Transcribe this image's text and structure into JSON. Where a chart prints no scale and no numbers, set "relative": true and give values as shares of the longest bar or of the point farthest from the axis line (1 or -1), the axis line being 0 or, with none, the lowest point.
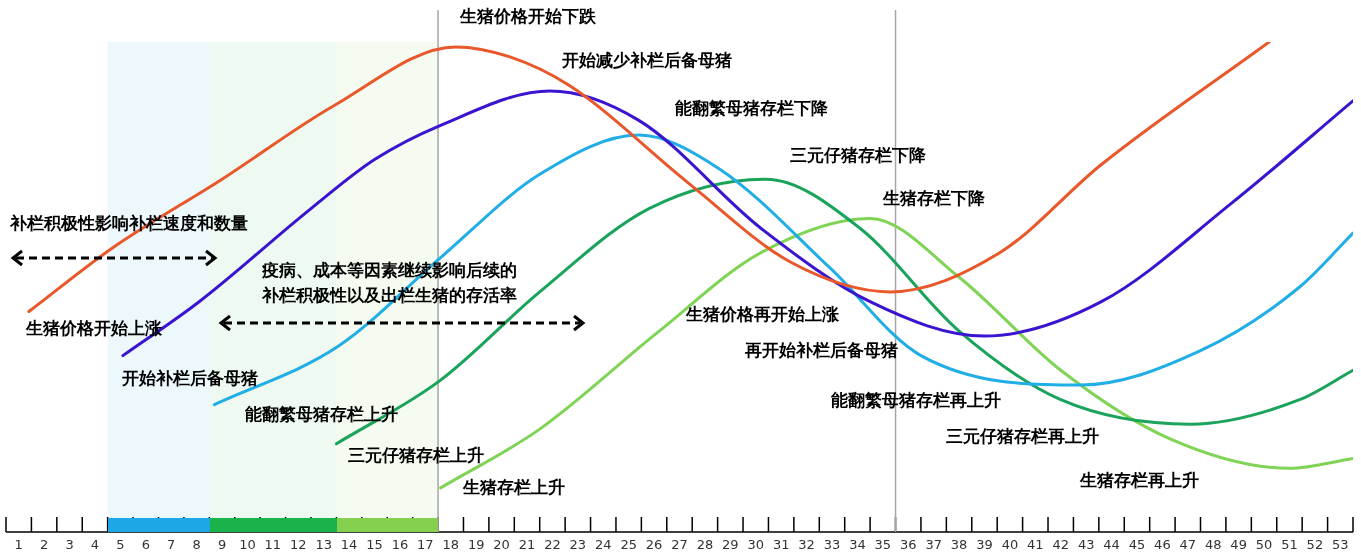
{
  "chart_data": {
    "type": "line",
    "relative": true,
    "legend": false,
    "marker": "none",
    "xlim": [
      0.5,
      53.5
    ],
    "xticks": [
      {
        "value": 0.5,
        "label": null
      },
      1,
      {
        "value": 1.5,
        "label": null
      },
      2,
      {
        "value": 2.5,
        "label": null
      },
      3,
      {
        "value": 3.5,
        "label": null
      },
      4,
      {
        "value": 4.5,
        "label": null
      },
      5,
      {
        "value": 5.5,
        "label": null
      },
      6,
      {
        "value": 6.5,
        "label": null
      },
      7,
      {
        "value": 7.5,
        "label": null
      },
      8,
      {
        "value": 8.5,
        "label": null
      },
      9,
      {
        "value": 9.5,
        "label": null
      },
      10,
      {
        "value": 10.5,
        "label": null
      },
      11,
      {
        "value": 11.5,
        "label": null
      },
      12,
      {
        "value": 12.5,
        "label": null
      },
      13,
      {
        "value": 13.5,
        "label": null
      },
      14,
      {
        "value": 14.5,
        "label": null
      },
      15,
      {
        "value": 15.5,
        "label": null
      },
      16,
      {
        "value": 16.5,
        "label": null
      },
      17,
      {
        "value": 17.5,
        "label": null
      },
      18,
      {
        "value": 18.5,
        "label": null
      },
      19,
      {
        "value": 19.5,
        "label": null
      },
      20,
      {
        "value": 20.5,
        "label": null
      },
      21,
      {
        "value": 21.5,
        "label": null
      },
      22,
      {
        "value": 22.5,
        "label": null
      },
      23,
      {
        "value": 23.5,
        "label": null
      },
      24,
      {
        "value": 24.5,
        "label": null
      },
      25,
      {
        "value": 25.5,
        "label": null
      },
      26,
      {
        "value": 26.5,
        "label": null
      },
      27,
      {
        "value": 27.5,
        "label": null
      },
      28,
      {
        "value": 28.5,
        "label": null
      },
      29,
      {
        "value": 29.5,
        "label": null
      },
      30,
      {
        "value": 30.5,
        "label": null
      },
      31,
      {
        "value": 31.5,
        "label": null
      },
      32,
      {
        "value": 32.5,
        "label": null
      },
      33,
      {
        "value": 33.5,
        "label": null
      },
      34,
      {
        "value": 34.5,
        "label": null
      },
      35,
      {
        "value": 35.5,
        "label": null
      },
      36,
      {
        "value": 36.5,
        "label": null
      },
      37,
      {
        "value": 37.5,
        "label": null
      },
      38,
      {
        "value": 38.5,
        "label": null
      },
      39,
      {
        "value": 39.5,
        "label": null
      },
      40,
      {
        "value": 40.5,
        "label": null
      },
      41,
      {
        "value": 41.5,
        "label": null
      },
      42,
      {
        "value": 42.5,
        "label": null
      },
      43,
      {
        "value": 43.5,
        "label": null
      },
      44,
      {
        "value": 44.5,
        "label": null
      },
      45,
      {
        "value": 45.5,
        "label": null
      },
      46,
      {
        "value": 46.5,
        "label": null
      },
      47,
      {
        "value": 47.5,
        "label": null
      },
      48,
      {
        "value": 48.5,
        "label": null
      },
      49,
      {
        "value": 49.5,
        "label": null
      },
      50,
      {
        "value": 50.5,
        "label": null
      },
      51,
      {
        "value": 51.5,
        "label": null
      },
      52,
      {
        "value": 52.5,
        "label": null
      },
      53,
      {
        "value": 53.5,
        "label": null
      }
    ],
    "series": [
      {
        "color": "#e8582a",
        "x": [
          1.4,
          4.7,
          9.0,
          13.4,
          18.2,
          20.3,
          22.7,
          27.4,
          31.4,
          35.3,
          39.6,
          43.6,
          50.2
        ],
        "values": [
          0.45,
          0.58,
          0.72,
          0.87,
          0.99,
          0.97,
          0.91,
          0.71,
          0.55,
          0.49,
          0.57,
          0.75,
          1.0
        ]
      },
      {
        "color": "#3a14d0",
        "x": [
          5.1,
          8.1,
          12.5,
          15.0,
          17.6,
          21.9,
          25.4,
          30.2,
          34.5,
          39.0,
          43.6,
          48.7,
          53.5
        ],
        "values": [
          0.36,
          0.47,
          0.66,
          0.76,
          0.83,
          0.9,
          0.84,
          0.62,
          0.47,
          0.4,
          0.47,
          0.67,
          0.88
        ]
      },
      {
        "color": "#21aee6",
        "x": [
          8.7,
          13.6,
          17.6,
          21.5,
          25.4,
          28.6,
          32.9,
          36.5,
          42.8,
          47.5,
          51.4,
          53.5
        ],
        "values": [
          0.26,
          0.38,
          0.56,
          0.73,
          0.81,
          0.74,
          0.54,
          0.36,
          0.3,
          0.37,
          0.5,
          0.61
        ]
      },
      {
        "color": "#1aa35a",
        "x": [
          13.5,
          17.6,
          21.5,
          25.8,
          30.4,
          34.1,
          38.0,
          42.0,
          47.1,
          51.4,
          53.5
        ],
        "values": [
          0.18,
          0.31,
          0.49,
          0.66,
          0.72,
          0.62,
          0.41,
          0.27,
          0.22,
          0.27,
          0.33
        ]
      },
      {
        "color": "#7fd455",
        "x": [
          17.6,
          21.5,
          26.2,
          30.2,
          34.5,
          38.0,
          42.0,
          46.3,
          51.0,
          53.5
        ],
        "values": [
          0.09,
          0.21,
          0.41,
          0.57,
          0.64,
          0.52,
          0.33,
          0.19,
          0.13,
          0.15
        ]
      }
    ],
    "ref_lines": [
      {
        "axis": "x",
        "value": 17.5,
        "label": "生猪价格开始下跌",
        "color": "#a6a6a6"
      },
      {
        "axis": "x",
        "value": 35.5,
        "color": "#a6a6a6"
      }
    ],
    "bands": [
      {
        "axis": "x",
        "from": 4.5,
        "to": 8.5,
        "color": "#1ea7e6"
      },
      {
        "axis": "x",
        "from": 8.5,
        "to": 13.5,
        "color": "#19b24b"
      },
      {
        "axis": "x",
        "from": 13.5,
        "to": 17.5,
        "color": "#85d14f"
      }
    ],
    "annotations": [
      "开始减少补栏后备母猪",
      "能翻繁母猪存栏下降",
      "三元仔猪存栏下降",
      "生猪存栏下降",
      "补栏积极性影响补栏速度和数量",
      "疫病、成本等因素继续影响后续的",
      "补栏积极性以及出栏生猪的存活率",
      "生猪价格开始上涨",
      "开始补栏后备母猪",
      "能翻繁母猪存栏上升",
      "三元仔猪存栏上升",
      "生猪存栏上升",
      "生猪价格再开始上涨",
      "再开始补栏后备母猪",
      "能翻繁母猪存栏再上升",
      "三元仔猪存栏再上升",
      "生猪存栏再上升"
    ]
  }
}
